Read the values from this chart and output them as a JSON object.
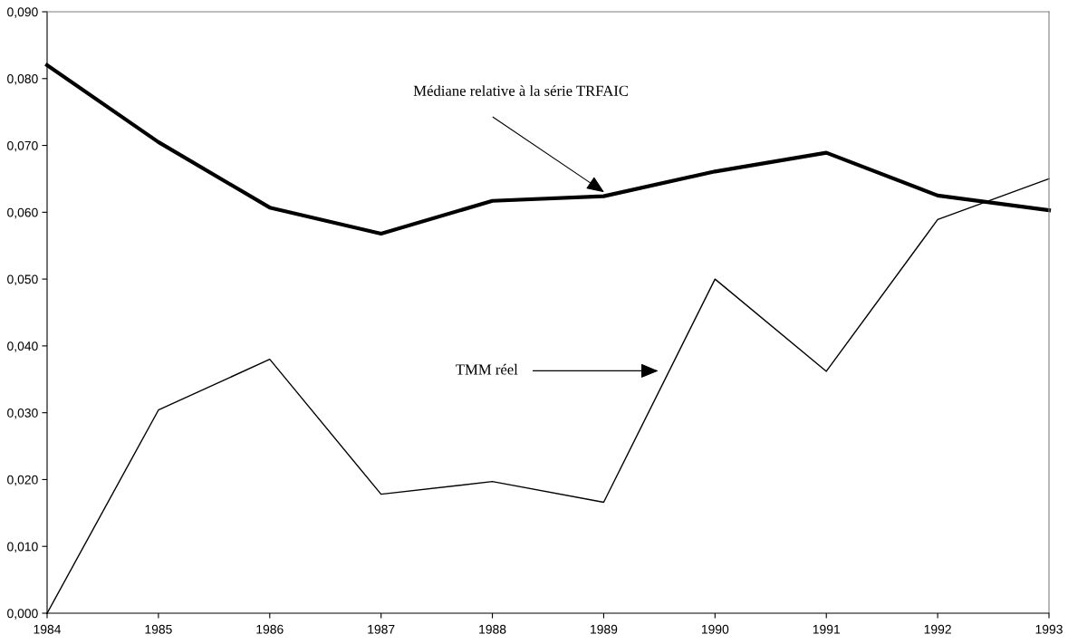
{
  "chart_data": {
    "type": "line",
    "x": [
      1984,
      1985,
      1986,
      1987,
      1988,
      1989,
      1990,
      1991,
      1992,
      1993
    ],
    "series": [
      {
        "color": "#000000",
        "values": [
          0.082,
          0.0705,
          0.0607,
          0.0568,
          0.0617,
          0.0624,
          0.0661,
          0.0689,
          0.0625,
          0.0603
        ]
      },
      {
        "color": "#000000",
        "values": [
          0.0,
          0.0304,
          0.038,
          0.0178,
          0.0197,
          0.0166,
          0.05,
          0.0362,
          0.0589,
          0.065
        ]
      }
    ],
    "xlim": [
      1984,
      1993
    ],
    "xticks": [
      1984,
      1985,
      1986,
      1987,
      1988,
      1989,
      1990,
      1991,
      1992,
      1993
    ],
    "ylim": [
      0,
      0.09
    ],
    "yticks": [
      {
        "value": 0,
        "label": "0,000"
      },
      {
        "value": 0.01,
        "label": "0,010"
      },
      {
        "value": 0.02,
        "label": "0,020"
      },
      {
        "value": 0.03,
        "label": "0,030"
      },
      {
        "value": 0.04,
        "label": "0,040"
      },
      {
        "value": 0.05,
        "label": "0,050"
      },
      {
        "value": 0.06,
        "label": "0,060"
      },
      {
        "value": 0.07,
        "label": "0,070"
      },
      {
        "value": 0.08,
        "label": "0,080"
      },
      {
        "value": 0.09,
        "label": "0,090"
      }
    ],
    "annotations": [
      "Médiane relative à la série TRFAIC",
      "TMM réel"
    ],
    "grid": false,
    "legend": false,
    "marker": "none",
    "line_style": "solid"
  }
}
